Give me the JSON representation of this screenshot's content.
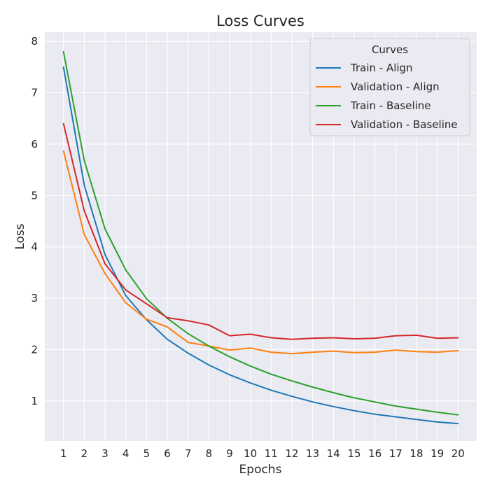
{
  "chart_data": {
    "type": "line",
    "title": "Loss Curves",
    "xlabel": "Epochs",
    "ylabel": "Loss",
    "x": [
      1,
      2,
      3,
      4,
      5,
      6,
      7,
      8,
      9,
      10,
      11,
      12,
      13,
      14,
      15,
      16,
      17,
      18,
      19,
      20
    ],
    "xticks": [
      "1",
      "2",
      "3",
      "4",
      "5",
      "6",
      "7",
      "8",
      "9",
      "10",
      "11",
      "12",
      "13",
      "14",
      "15",
      "16",
      "17",
      "18",
      "19",
      "20"
    ],
    "yticks": [
      "1",
      "2",
      "3",
      "4",
      "5",
      "6",
      "7",
      "8"
    ],
    "ylim": [
      0.22,
      8.18
    ],
    "xlim": [
      0.1,
      20.9
    ],
    "grid": true,
    "legend": {
      "title": "Curves",
      "placement": "top-right"
    },
    "series": [
      {
        "name": "Train - Align",
        "color": "#1f77b4",
        "values": [
          7.5,
          5.2,
          3.85,
          3.05,
          2.58,
          2.2,
          1.93,
          1.7,
          1.51,
          1.35,
          1.21,
          1.09,
          0.98,
          0.89,
          0.81,
          0.74,
          0.69,
          0.64,
          0.59,
          0.56
        ]
      },
      {
        "name": "Validation - Align",
        "color": "#ff7f0e",
        "values": [
          5.87,
          4.24,
          3.48,
          2.91,
          2.59,
          2.44,
          2.14,
          2.07,
          1.99,
          2.03,
          1.95,
          1.92,
          1.95,
          1.97,
          1.94,
          1.95,
          1.99,
          1.96,
          1.95,
          1.98
        ]
      },
      {
        "name": "Train - Baseline",
        "color": "#2ca02c",
        "values": [
          7.8,
          5.68,
          4.35,
          3.55,
          2.99,
          2.61,
          2.31,
          2.07,
          1.86,
          1.68,
          1.52,
          1.39,
          1.27,
          1.16,
          1.06,
          0.98,
          0.9,
          0.84,
          0.78,
          0.73
        ]
      },
      {
        "name": "Validation - Baseline",
        "color": "#d62728",
        "values": [
          6.4,
          4.7,
          3.67,
          3.16,
          2.89,
          2.62,
          2.56,
          2.48,
          2.27,
          2.3,
          2.23,
          2.2,
          2.22,
          2.23,
          2.21,
          2.22,
          2.27,
          2.28,
          2.22,
          2.23
        ]
      }
    ]
  }
}
